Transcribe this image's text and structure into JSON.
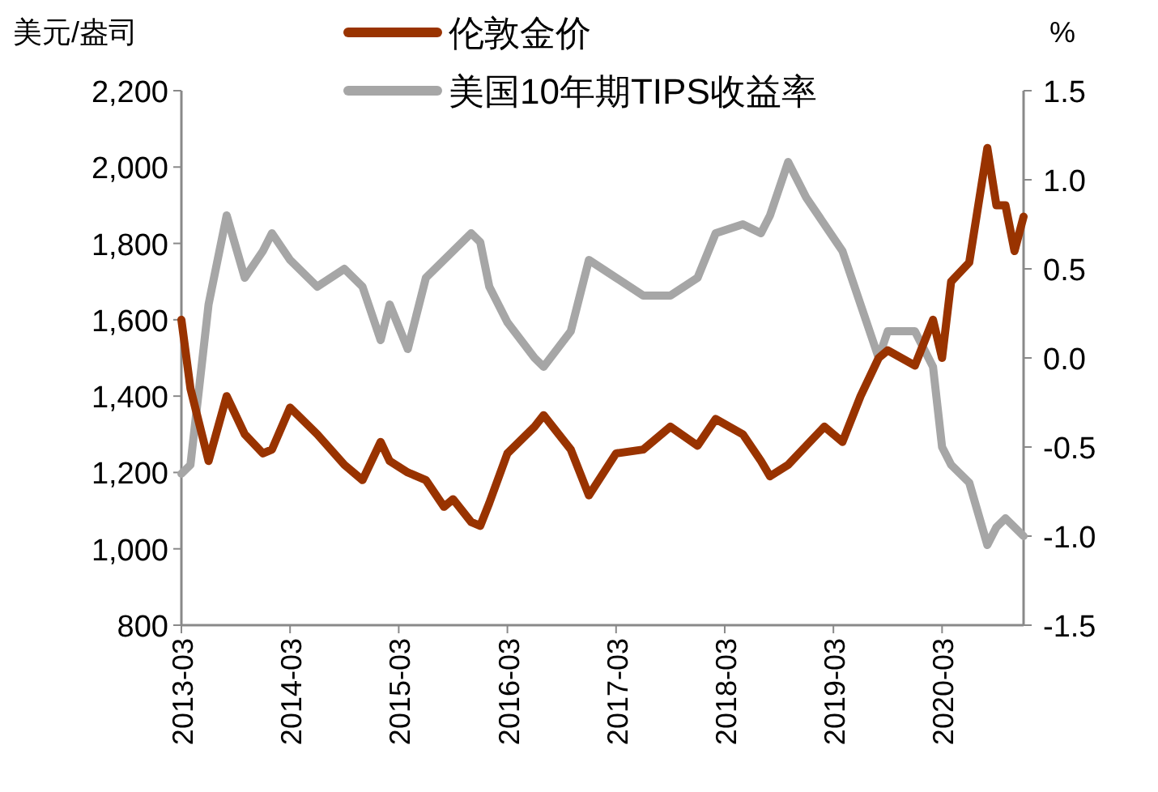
{
  "chart_data": {
    "type": "line",
    "ylabel": "美元/盎司",
    "y2label": "%",
    "legend": "top",
    "x": [
      "2013-03",
      "2013-04",
      "2013-06",
      "2013-08",
      "2013-10",
      "2013-12",
      "2014-01",
      "2014-03",
      "2014-06",
      "2014-09",
      "2014-11",
      "2015-01",
      "2015-02",
      "2015-04",
      "2015-06",
      "2015-08",
      "2015-09",
      "2015-11",
      "2015-12",
      "2016-01",
      "2016-03",
      "2016-06",
      "2016-07",
      "2016-10",
      "2016-12",
      "2017-03",
      "2017-06",
      "2017-09",
      "2017-12",
      "2018-02",
      "2018-05",
      "2018-07",
      "2018-08",
      "2018-10",
      "2018-12",
      "2019-02",
      "2019-04",
      "2019-06",
      "2019-08",
      "2019-09",
      "2019-12",
      "2020-02",
      "2020-03",
      "2020-04",
      "2020-06",
      "2020-08",
      "2020-09",
      "2020-10",
      "2020-11",
      "2020-12"
    ],
    "series": [
      {
        "name": "伦敦金价",
        "color": "#993300",
        "values": [
          1600,
          1420,
          1230,
          1400,
          1300,
          1250,
          1260,
          1370,
          1300,
          1220,
          1180,
          1280,
          1230,
          1200,
          1180,
          1110,
          1130,
          1070,
          1060,
          1120,
          1250,
          1320,
          1350,
          1260,
          1140,
          1250,
          1260,
          1320,
          1270,
          1340,
          1300,
          1230,
          1190,
          1220,
          1270,
          1320,
          1280,
          1400,
          1500,
          1520,
          1480,
          1600,
          1500,
          1700,
          1750,
          2050,
          1900,
          1900,
          1780,
          1870
        ]
      },
      {
        "name": "美国10年期TIPS收益率",
        "color": "#a6a6a6",
        "axis": "y2",
        "values": [
          -0.65,
          -0.6,
          0.3,
          0.8,
          0.45,
          0.6,
          0.7,
          0.55,
          0.4,
          0.5,
          0.4,
          0.1,
          0.3,
          0.05,
          0.45,
          0.55,
          0.6,
          0.7,
          0.65,
          0.4,
          0.2,
          0.0,
          -0.05,
          0.15,
          0.55,
          0.45,
          0.35,
          0.35,
          0.45,
          0.7,
          0.75,
          0.7,
          0.8,
          1.1,
          0.9,
          0.75,
          0.6,
          0.3,
          0.0,
          0.15,
          0.15,
          -0.05,
          -0.5,
          -0.6,
          -0.7,
          -1.05,
          -0.95,
          -0.9,
          -0.95,
          -1.0
        ]
      }
    ],
    "xlim": [
      "2013-03",
      "2020-12"
    ],
    "xticks": [
      "2013-03",
      "2014-03",
      "2015-03",
      "2016-03",
      "2017-03",
      "2018-03",
      "2019-03",
      "2020-03"
    ],
    "ylim": [
      800,
      2200
    ],
    "yticks": [
      {
        "value": 800,
        "label": "800"
      },
      {
        "value": 1000,
        "label": "1,000"
      },
      {
        "value": 1200,
        "label": "1,200"
      },
      {
        "value": 1400,
        "label": "1,400"
      },
      {
        "value": 1600,
        "label": "1,600"
      },
      {
        "value": 1800,
        "label": "1,800"
      },
      {
        "value": 2000,
        "label": "2,000"
      },
      {
        "value": 2200,
        "label": "2,200"
      }
    ],
    "y2lim": [
      -1.5,
      1.5
    ],
    "y2ticks": [
      -1.5,
      {
        "value": -1,
        "label": "-1.0"
      },
      -0.5,
      {
        "value": 0,
        "label": "0.0"
      },
      0.5,
      {
        "value": 1,
        "label": "1.0"
      },
      1.5
    ],
    "grid": false
  }
}
